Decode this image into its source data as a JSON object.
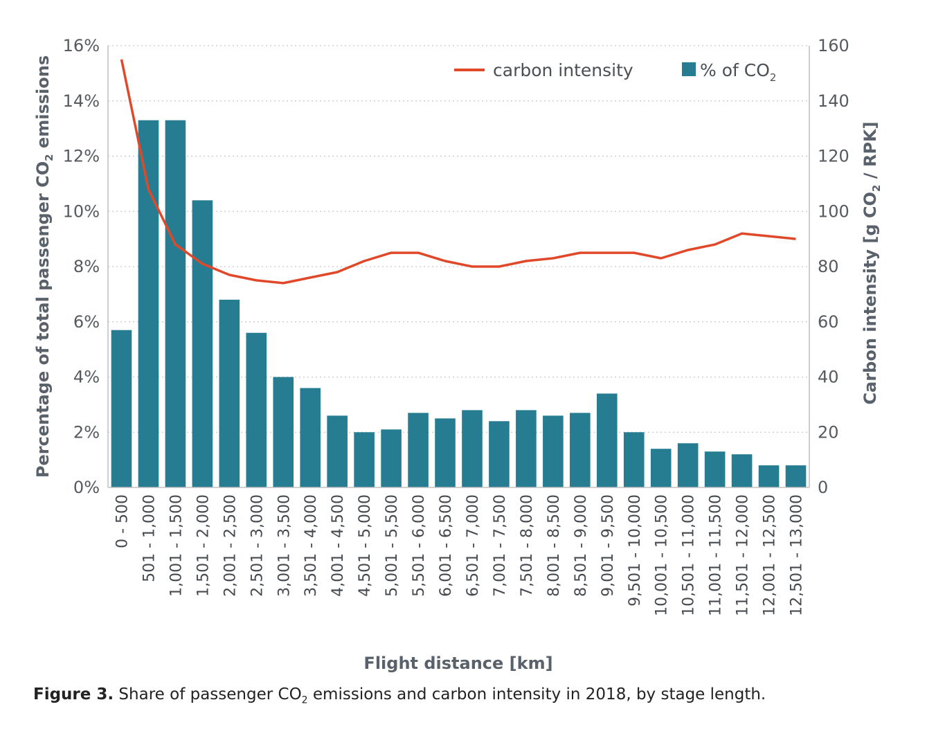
{
  "chart_data": {
    "type": "bar",
    "combo": "bar + line, dual y-axis",
    "categories": [
      "0 - 500",
      "501 - 1,000",
      "1,001 - 1,500",
      "1,501 - 2,000",
      "2,001 - 2,500",
      "2,501 - 3,000",
      "3,001 - 3,500",
      "3,501 - 4,000",
      "4,001 - 4,500",
      "4,501 - 5,000",
      "5,001 - 5,500",
      "5,501 - 6,000",
      "6,001 - 6,500",
      "6,501 - 7,000",
      "7,001 - 7,500",
      "7,501 - 8,000",
      "8,001 - 8,500",
      "8,501 - 9,000",
      "9,001 - 9,500",
      "9,501 - 10,000",
      "10,001 - 10,500",
      "10,501 - 11,000",
      "11,001 - 11,500",
      "11,501 - 12,000",
      "12,001 - 12,500",
      "12,501 - 13,000"
    ],
    "series": [
      {
        "name": "% of CO",
        "name_subscript": "2",
        "type": "bar",
        "axis": "left",
        "color": "#267d92",
        "values": [
          5.7,
          13.3,
          13.3,
          10.4,
          6.8,
          5.6,
          4.0,
          3.6,
          2.6,
          2.0,
          2.1,
          2.7,
          2.5,
          2.8,
          2.4,
          2.8,
          2.6,
          2.7,
          3.4,
          2.0,
          1.4,
          1.6,
          1.3,
          1.2,
          0.8,
          0.8
        ]
      },
      {
        "name": "carbon intensity",
        "type": "line",
        "axis": "right",
        "color": "#e0482a",
        "values": [
          155,
          108,
          88,
          81,
          77,
          75,
          74,
          76,
          78,
          82,
          85,
          85,
          82,
          80,
          80,
          82,
          83,
          85,
          85,
          85,
          83,
          86,
          88,
          92,
          91,
          90
        ]
      }
    ],
    "ylim_left": [
      0,
      16
    ],
    "ylim_right": [
      0,
      160
    ],
    "yticks_left": [
      "0%",
      "2%",
      "4%",
      "6%",
      "8%",
      "10%",
      "12%",
      "14%",
      "16%"
    ],
    "yticks_right": [
      "0",
      "20",
      "40",
      "60",
      "80",
      "100",
      "120",
      "140",
      "160"
    ],
    "ylabel_left": {
      "before": "Percentage of total passenger CO",
      "sub": "2",
      "after": " emissions"
    },
    "ylabel_right": {
      "before": "Carbon intensity [g CO",
      "sub": "2",
      "after": " / RPK]"
    },
    "xlabel": "Flight distance [km]",
    "grid": "horizontal dotted",
    "legend_position": "top-right"
  },
  "caption": {
    "label": "Figure 3.",
    "before": " Share of passenger CO",
    "sub": "2",
    "after": " emissions and carbon intensity in 2018, by stage length."
  }
}
